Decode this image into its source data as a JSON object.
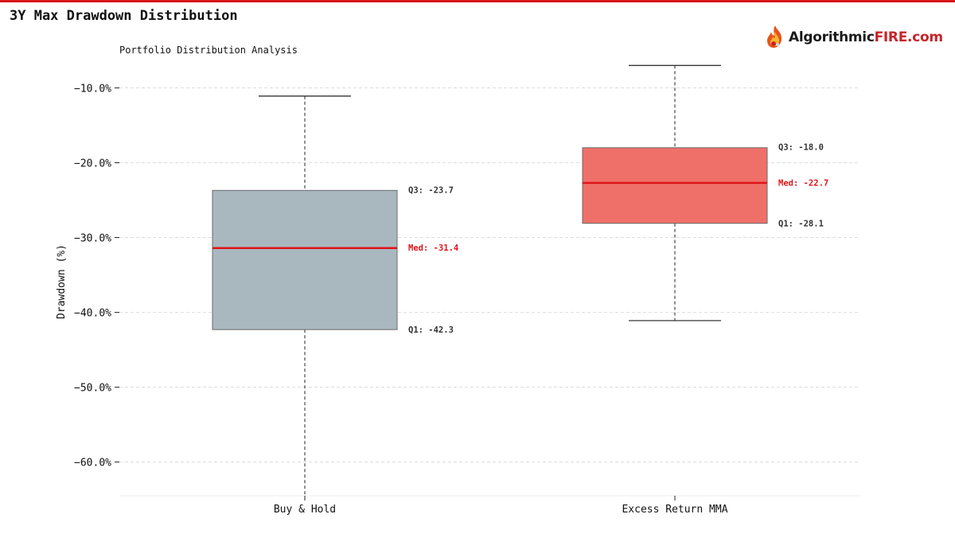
{
  "page": {
    "title": "3Y Max Drawdown Distribution"
  },
  "logo": {
    "text_main": "Algorithmic",
    "text_accent": "FIRE",
    "text_suffix": ".com",
    "icon": "flame-icon",
    "colors": {
      "dark": "#1a1a1a",
      "accent": "#c4242a"
    }
  },
  "chart_data": {
    "type": "box",
    "subtitle": "Portfolio Distribution Analysis",
    "xlabel": "",
    "ylabel": "Drawdown (%)",
    "ylim": [
      -64.5,
      -4
    ],
    "yticks": [
      -10,
      -20,
      -30,
      -40,
      -50,
      -60
    ],
    "ytick_labels": [
      "−10.0%",
      "−20.0%",
      "−30.0%",
      "−40.0%",
      "−50.0%",
      "−60.0%"
    ],
    "grid": true,
    "categories": [
      "Buy & Hold",
      "Excess Return MMA"
    ],
    "series": [
      {
        "whisker_low": -65,
        "q1": -42.3,
        "median": -31.4,
        "q3": -23.7,
        "whisker_high": -11.1,
        "color": "#a9b8bf",
        "labels": {
          "q3": "Q3: -23.7",
          "median": "Med: -31.4",
          "q1": "Q1: -42.3"
        }
      },
      {
        "whisker_low": -41.1,
        "q1": -28.1,
        "median": -22.7,
        "q3": -18.0,
        "whisker_high": -7.0,
        "color": "#ef7069",
        "labels": {
          "q3": "Q3: -18.0",
          "median": "Med: -22.7",
          "q1": "Q1: -28.1"
        }
      }
    ],
    "colors": {
      "median": "#e0141a",
      "grid": "#dcdcdc",
      "label": "#333333"
    }
  }
}
